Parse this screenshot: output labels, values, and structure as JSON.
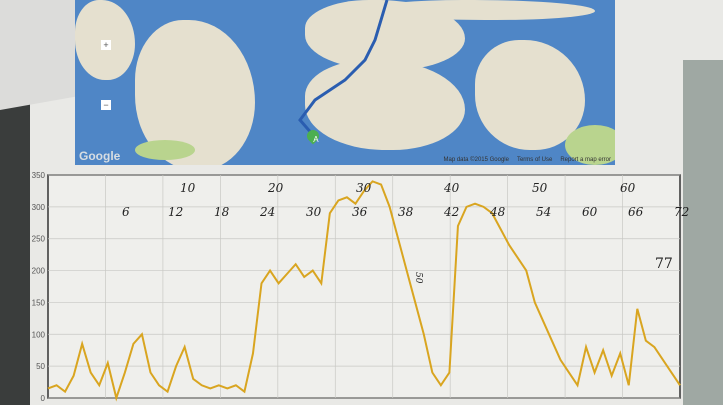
{
  "map": {
    "logo": "Google",
    "attribution": "Map data ©2015 Google",
    "terms": "Terms of Use",
    "report": "Report a map error",
    "marker_label": "A",
    "zoom_in": "+",
    "zoom_out": "−",
    "colors": {
      "water": "#4f86c6",
      "land": "#e5e0cf",
      "park": "#b9d48e",
      "route": "#2a5db0"
    }
  },
  "chart_data": {
    "type": "line",
    "title": "",
    "xlabel": "",
    "ylabel": "",
    "ylim": [
      0,
      350
    ],
    "yticks": [
      "0",
      "50",
      "100",
      "150",
      "200",
      "250",
      "300",
      "350"
    ],
    "grid": true,
    "line_color": "#d9a520",
    "series": [
      {
        "values": [
          15,
          20,
          10,
          35,
          85,
          40,
          20,
          55,
          0,
          40,
          85,
          100,
          40,
          20,
          10,
          50,
          80,
          30,
          20,
          15,
          20,
          15,
          20,
          10,
          70,
          180,
          200,
          180,
          195,
          210,
          190,
          200,
          180,
          290,
          310,
          315,
          305,
          325,
          340,
          335,
          300,
          250,
          200,
          150,
          100,
          40,
          20,
          40,
          270,
          300,
          305,
          300,
          290,
          265,
          240,
          220,
          200,
          150,
          120,
          90,
          60,
          40,
          20,
          80,
          40,
          75,
          35,
          70,
          20,
          140,
          90,
          80,
          60,
          40,
          20
        ]
      }
    ],
    "annotations": {
      "top_row": [
        "10",
        "20",
        "30",
        "40",
        "50",
        "60"
      ],
      "bottom_row": [
        "6",
        "12",
        "18",
        "24",
        "30",
        "36",
        "38",
        "42",
        "48",
        "54",
        "60",
        "66",
        "72"
      ],
      "vertical_note": "50",
      "side_note": "77"
    }
  }
}
